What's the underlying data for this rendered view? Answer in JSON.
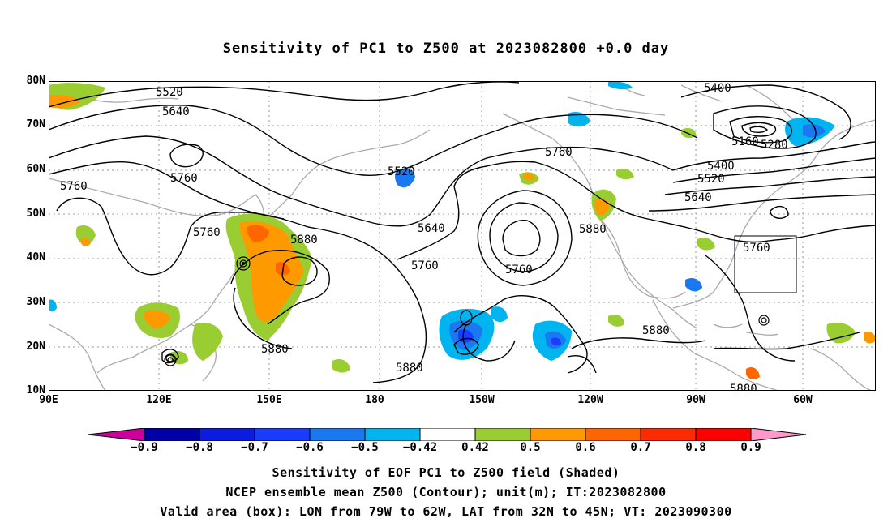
{
  "title": "Sensitivity of PC1 to Z500 at 2023082800 +0.0 day",
  "lat_labels": [
    "80N",
    "70N",
    "60N",
    "50N",
    "40N",
    "30N",
    "20N",
    "10N"
  ],
  "lon_labels": [
    "90E",
    "120E",
    "150E",
    "180",
    "150W",
    "120W",
    "90W",
    "60W"
  ],
  "contour_labels": {
    "c5520a": "5520",
    "c5640a": "5640",
    "c5760a": "5760",
    "c5760b": "5760",
    "c5760c": "5760",
    "c5880a": "5880",
    "c5880b": "5880",
    "c5520b": "5520",
    "c5640b": "5640",
    "c5760d": "5760",
    "c5760e": "5760",
    "c5880c": "5880",
    "c5880d": "5880",
    "c5760f": "5760",
    "c5400a": "5400",
    "c5160": "5160",
    "c5280": "5280",
    "c5400b": "5400",
    "c5520c": "5520",
    "c5640c": "5640",
    "c5760g": "5760",
    "c5880e": "5880",
    "c5880f": "5880"
  },
  "colorbar": {
    "labels": [
      "−0.9",
      "−0.8",
      "−0.7",
      "−0.6",
      "−0.5",
      "−0.42",
      "0.42",
      "0.5",
      "0.6",
      "0.7",
      "0.8",
      "0.9"
    ],
    "colors": [
      "#cc0099",
      "#0000a8",
      "#0a1ce0",
      "#1a3cff",
      "#1a78f0",
      "#00b4f0",
      "#ffffff",
      "#9acd32",
      "#ff9900",
      "#ff6600",
      "#ff2a00",
      "#ff0000",
      "#ff99cc"
    ]
  },
  "captions": {
    "line1": "Sensitivity of EOF PC1 to Z500 field (Shaded)",
    "line2": "NCEP ensemble mean Z500 (Contour); unit(m); IT:2023082800",
    "line3": "Valid area (box): LON from 79W to 62W, LAT from 32N to 45N; VT: 2023090300"
  }
}
